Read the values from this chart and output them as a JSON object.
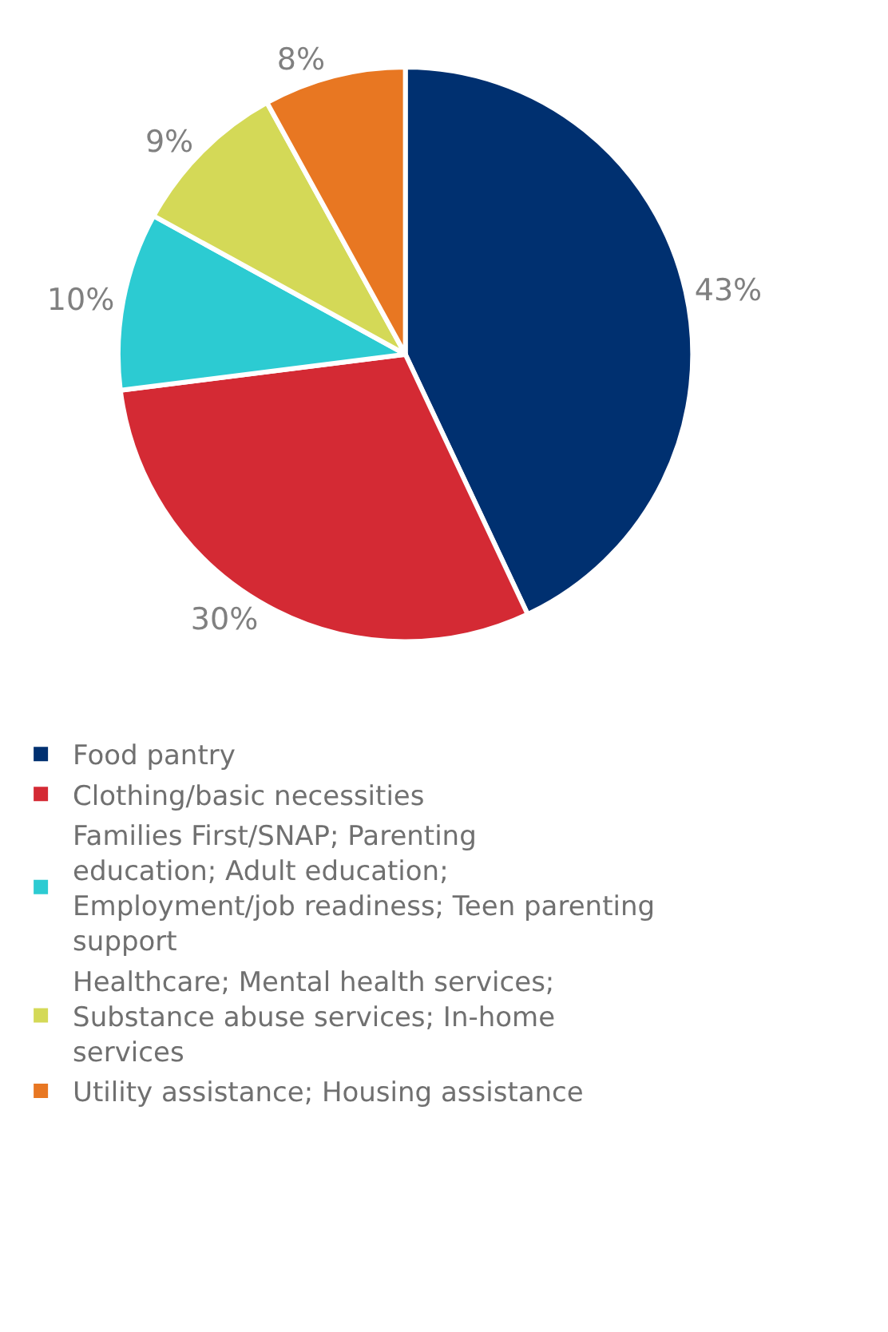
{
  "chart_data": {
    "type": "pie",
    "categories": [
      "Food pantry",
      "Clothing/basic necessities",
      "Families First/SNAP; Parenting education; Adult education; Employment/job readiness; Teen parenting support",
      "Healthcare; Mental health services; Substance abuse services; In-home services",
      "Utility assistance; Housing assistance"
    ],
    "values": [
      43,
      30,
      10,
      9,
      8
    ],
    "value_labels": [
      "43%",
      "30%",
      "10%",
      "9%",
      "8%"
    ],
    "colors": [
      "#003070",
      "#d42a34",
      "#2ccbd2",
      "#d4d957",
      "#e87722"
    ],
    "legend": "bottom"
  }
}
